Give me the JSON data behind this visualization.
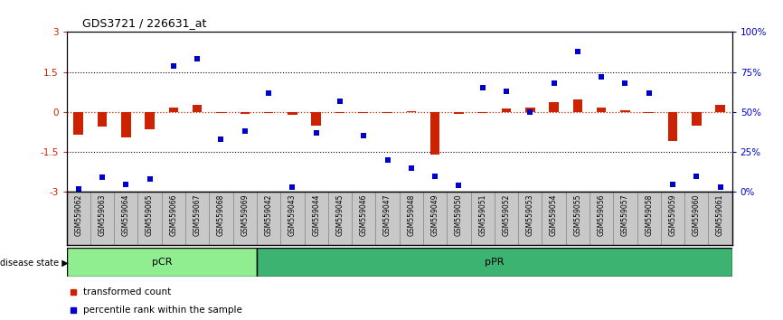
{
  "title": "GDS3721 / 226631_at",
  "samples": [
    "GSM559062",
    "GSM559063",
    "GSM559064",
    "GSM559065",
    "GSM559066",
    "GSM559067",
    "GSM559068",
    "GSM559069",
    "GSM559042",
    "GSM559043",
    "GSM559044",
    "GSM559045",
    "GSM559046",
    "GSM559047",
    "GSM559048",
    "GSM559049",
    "GSM559050",
    "GSM559051",
    "GSM559052",
    "GSM559053",
    "GSM559054",
    "GSM559055",
    "GSM559056",
    "GSM559057",
    "GSM559058",
    "GSM559059",
    "GSM559060",
    "GSM559061"
  ],
  "transformed_count": [
    -0.85,
    -0.55,
    -0.95,
    -0.65,
    0.18,
    0.28,
    -0.05,
    -0.08,
    -0.04,
    -0.1,
    -0.52,
    -0.05,
    -0.04,
    -0.04,
    0.04,
    -1.58,
    -0.06,
    -0.04,
    0.12,
    0.18,
    0.38,
    0.48,
    0.18,
    0.08,
    -0.04,
    -1.08,
    -0.52,
    0.28
  ],
  "percentile_rank": [
    2,
    9,
    5,
    8,
    79,
    83,
    33,
    38,
    62,
    3,
    37,
    57,
    35,
    20,
    15,
    10,
    4,
    65,
    63,
    50,
    68,
    88,
    72,
    68,
    62,
    5,
    10,
    3
  ],
  "pcr_count": 8,
  "ppr_count": 20,
  "bar_color": "#cc2200",
  "dot_color": "#0000cc",
  "pcr_color": "#90ee90",
  "ppr_color": "#3cb371",
  "legend_items": [
    "transformed count",
    "percentile rank within the sample"
  ],
  "bg_label_color": "#c8c8c8"
}
